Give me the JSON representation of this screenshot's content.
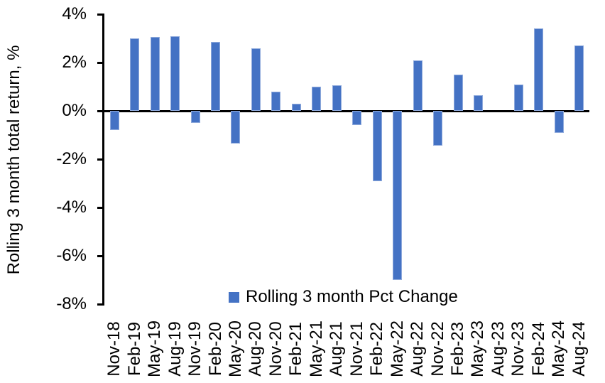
{
  "chart_data": {
    "type": "bar",
    "title": "",
    "xlabel": "",
    "ylabel": "Rolling 3 month total return, %",
    "categories": [
      "Nov-18",
      "Feb-19",
      "May-19",
      "Aug-19",
      "Nov-19",
      "Feb-20",
      "May-20",
      "Aug-20",
      "Nov-20",
      "Feb-21",
      "May-21",
      "Aug-21",
      "Nov-21",
      "Feb-22",
      "May-22",
      "Aug-22",
      "Nov-22",
      "Feb-23",
      "May-23",
      "Aug-23",
      "Nov-23",
      "Feb-24",
      "May-24",
      "Aug-24"
    ],
    "series": [
      {
        "name": "Rolling 3 month Pct Change",
        "values": [
          -0.8,
          3.0,
          3.05,
          3.1,
          -0.5,
          2.85,
          -1.35,
          2.6,
          0.8,
          0.3,
          1.0,
          1.05,
          -0.6,
          -2.9,
          -7.0,
          2.1,
          -1.45,
          1.5,
          0.65,
          0.0,
          1.1,
          3.4,
          -0.9,
          2.7
        ]
      }
    ],
    "ylim": [
      -8,
      4
    ],
    "yticks": [
      4,
      2,
      0,
      -2,
      -4,
      -6,
      -8
    ],
    "ytick_labels": [
      "4%",
      "2%",
      "0%",
      "-2%",
      "-4%",
      "-6%",
      "-8%"
    ],
    "grid": false,
    "legend_position": "bottom-center",
    "bar_color": "#4472C4",
    "bar_border_color": "#8FAADC",
    "axis_color": "#000000",
    "background_color": "#FFFFFF"
  }
}
